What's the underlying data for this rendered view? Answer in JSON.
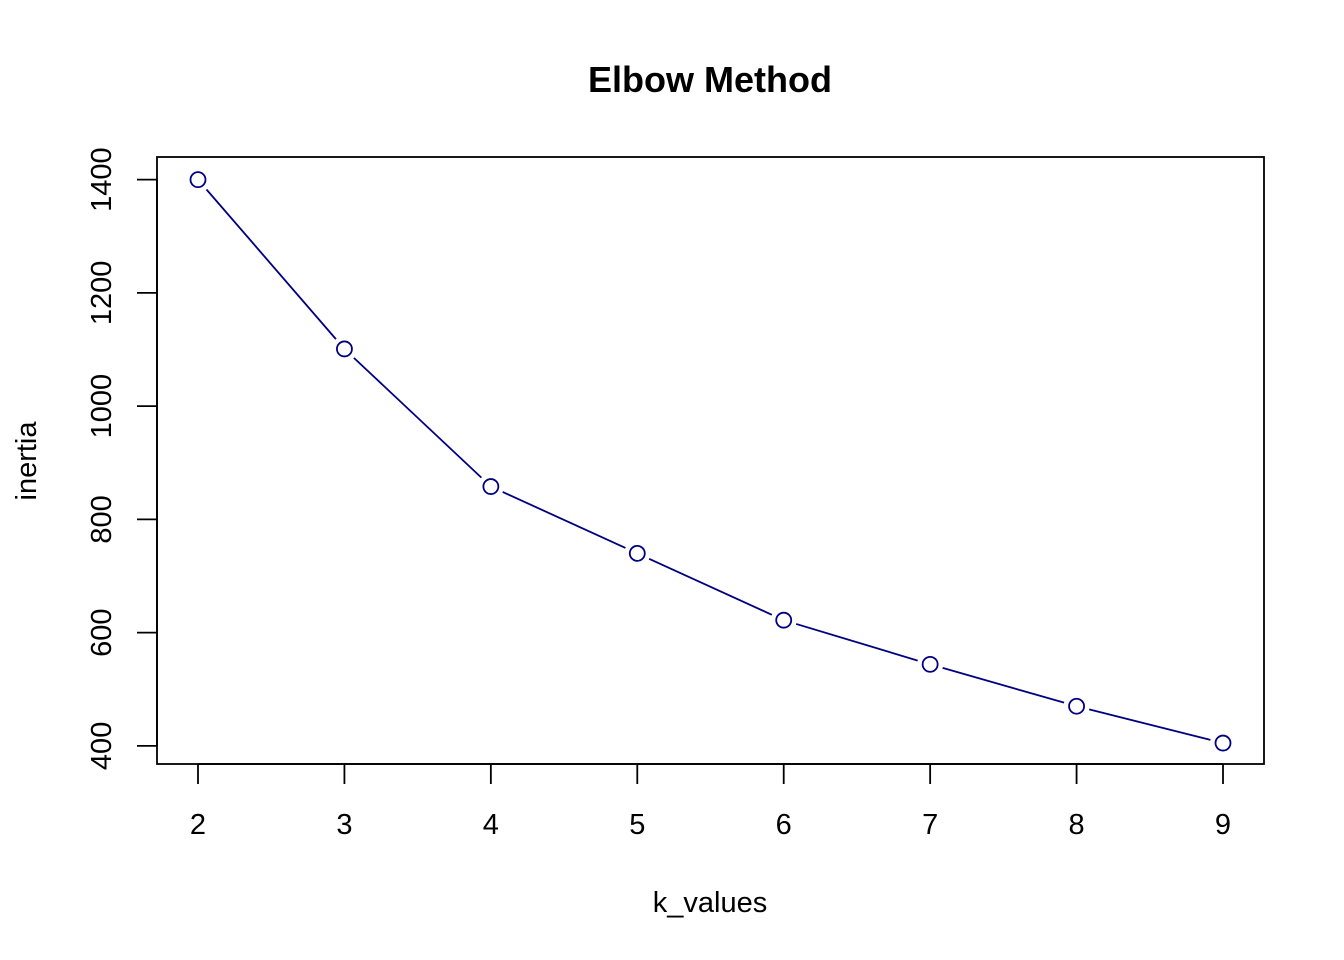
{
  "chart_data": {
    "type": "line",
    "title": "Elbow Method",
    "xlabel": "k_values",
    "ylabel": "inertia",
    "x": [
      2,
      3,
      4,
      5,
      6,
      7,
      8,
      9
    ],
    "series": [
      {
        "values": [
          1400,
          1101,
          858,
          740,
          622,
          544,
          470,
          405
        ]
      }
    ],
    "xticks": [
      2,
      3,
      4,
      5,
      6,
      7,
      8,
      9
    ],
    "yticks": [
      400,
      600,
      800,
      1000,
      1200,
      1400
    ],
    "xlim": [
      1.72,
      9.28
    ],
    "ylim": [
      368,
      1440
    ],
    "grid": false,
    "markers": "open-circle",
    "colors": {
      "line": "#000080",
      "axis": "#000000",
      "background": "#ffffff"
    }
  }
}
